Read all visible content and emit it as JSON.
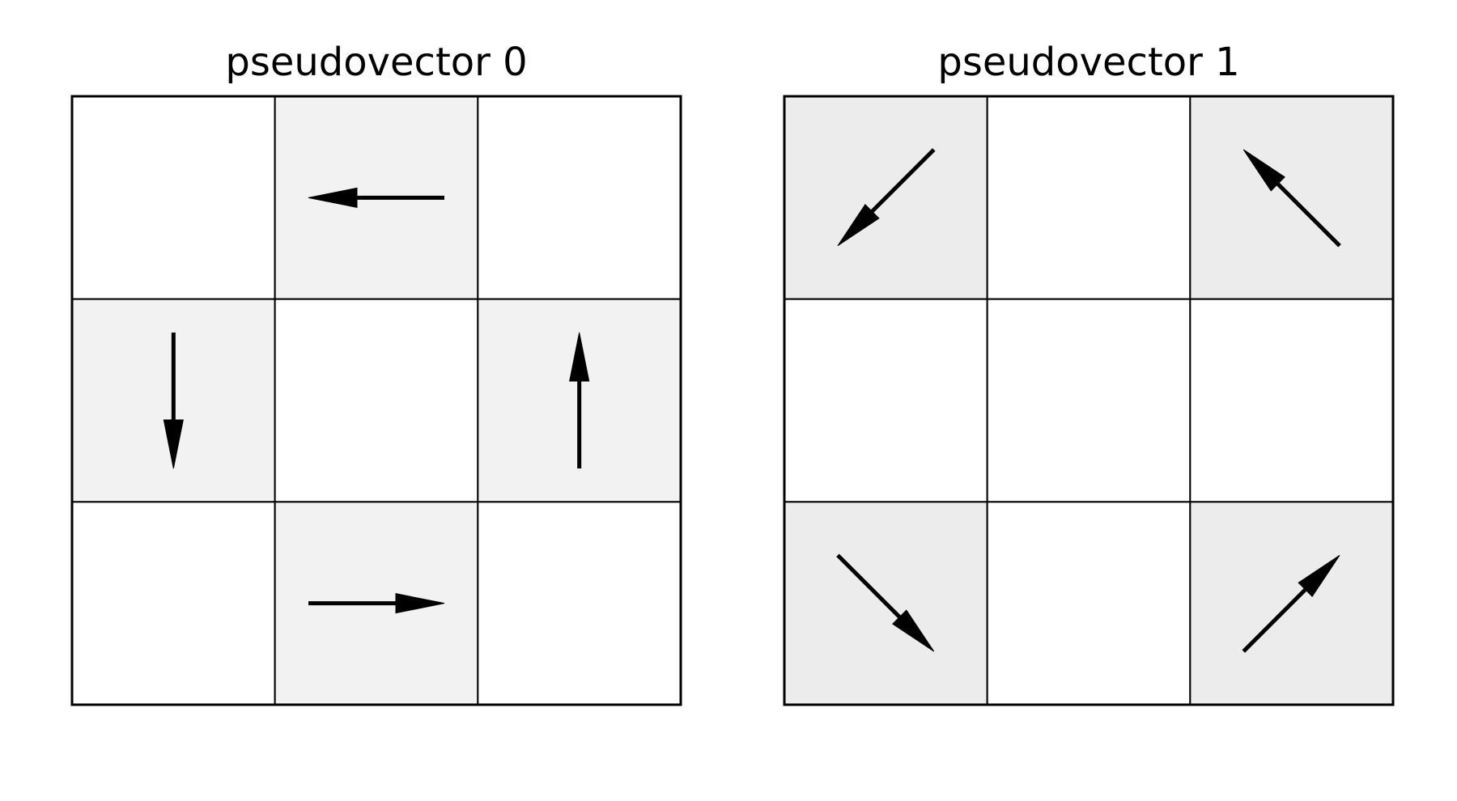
{
  "figure": {
    "panels": [
      {
        "title": "pseudovector 0",
        "highlight_color": "#f2f2f2",
        "cells": [
          {
            "row": 0,
            "col": 0,
            "highlight": false,
            "arrow": null
          },
          {
            "row": 0,
            "col": 1,
            "highlight": true,
            "arrow": "left"
          },
          {
            "row": 0,
            "col": 2,
            "highlight": false,
            "arrow": null
          },
          {
            "row": 1,
            "col": 0,
            "highlight": true,
            "arrow": "down"
          },
          {
            "row": 1,
            "col": 1,
            "highlight": false,
            "arrow": null
          },
          {
            "row": 1,
            "col": 2,
            "highlight": true,
            "arrow": "up"
          },
          {
            "row": 2,
            "col": 0,
            "highlight": false,
            "arrow": null
          },
          {
            "row": 2,
            "col": 1,
            "highlight": true,
            "arrow": "right"
          },
          {
            "row": 2,
            "col": 2,
            "highlight": false,
            "arrow": null
          }
        ]
      },
      {
        "title": "pseudovector 1",
        "highlight_color": "#ececec",
        "cells": [
          {
            "row": 0,
            "col": 0,
            "highlight": true,
            "arrow": "down-left"
          },
          {
            "row": 0,
            "col": 1,
            "highlight": false,
            "arrow": null
          },
          {
            "row": 0,
            "col": 2,
            "highlight": true,
            "arrow": "up-left"
          },
          {
            "row": 1,
            "col": 0,
            "highlight": false,
            "arrow": null
          },
          {
            "row": 1,
            "col": 1,
            "highlight": false,
            "arrow": null
          },
          {
            "row": 1,
            "col": 2,
            "highlight": false,
            "arrow": null
          },
          {
            "row": 2,
            "col": 0,
            "highlight": true,
            "arrow": "down-right"
          },
          {
            "row": 2,
            "col": 1,
            "highlight": false,
            "arrow": null
          },
          {
            "row": 2,
            "col": 2,
            "highlight": true,
            "arrow": "up-right"
          }
        ]
      }
    ],
    "colors": {
      "background": "#ffffff",
      "lines": "#000000",
      "arrow": "#000000"
    }
  }
}
